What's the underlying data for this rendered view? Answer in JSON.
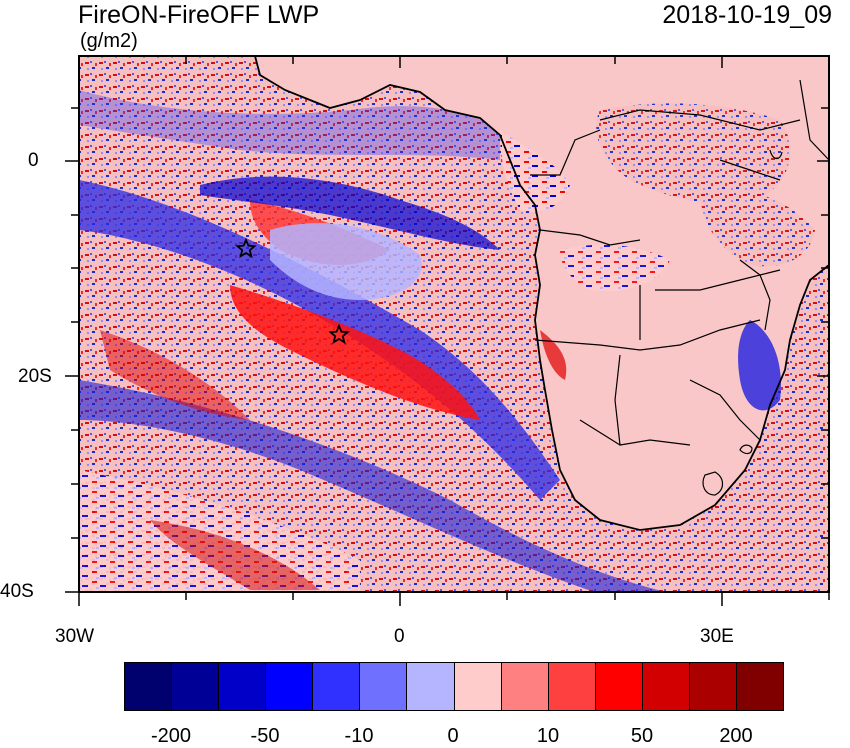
{
  "title": "FireON-FireOFF LWP",
  "datetime": "2018-10-19_09",
  "units": "(g/m2)",
  "lat_ticks": [
    "0",
    "20S",
    "40S"
  ],
  "lon_ticks": [
    "30W",
    "0",
    "30E"
  ],
  "colorbar": {
    "colors": [
      "#00006e",
      "#000096",
      "#0000c8",
      "#0000ff",
      "#3030ff",
      "#7070ff",
      "#b4b4ff",
      "#ffcccc",
      "#ff8080",
      "#ff4040",
      "#ff0000",
      "#d20000",
      "#aa0000",
      "#800000"
    ],
    "labels": [
      "-200",
      "-50",
      "-10",
      "0",
      "10",
      "50",
      "200"
    ]
  },
  "chart_data": {
    "type": "heatmap",
    "title": "FireON-FireOFF LWP",
    "units": "(g/m2)",
    "datetime": "2018-10-19_09",
    "lon_range": [
      "30W",
      "40E"
    ],
    "lat_range": [
      "10N",
      "40S"
    ],
    "markers": [
      "star",
      "star"
    ]
  }
}
